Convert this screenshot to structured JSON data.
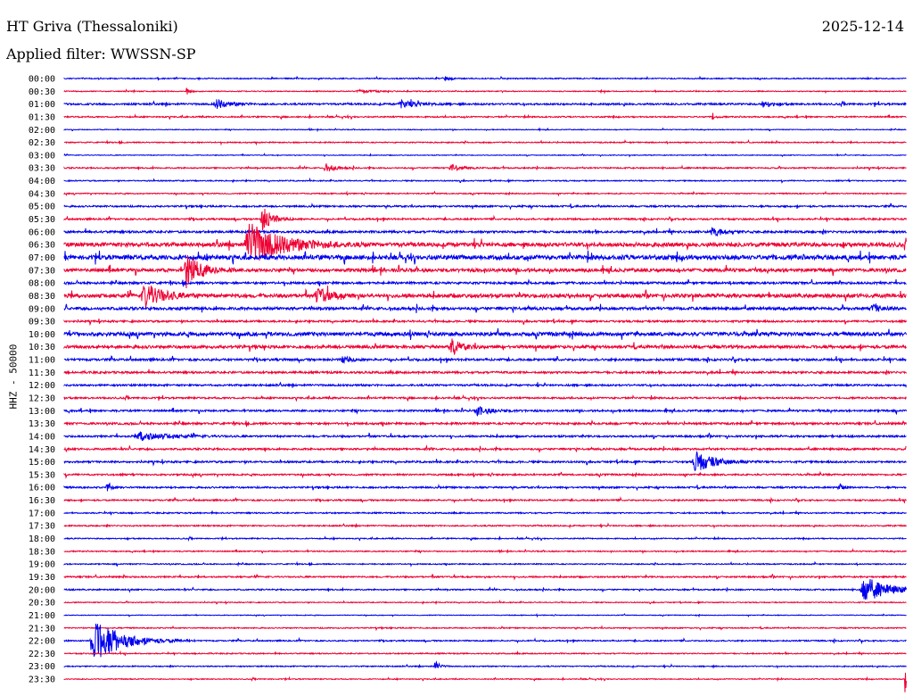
{
  "header": {
    "station": "HT Griva (Thessaloniki)",
    "date": "2025-12-14",
    "filter": "Applied filter: WWSSN-SP"
  },
  "chart_data": {
    "type": "line",
    "ylabel": "HHZ - 50000",
    "rows": [
      "00:00",
      "00:30",
      "01:00",
      "01:30",
      "02:00",
      "02:30",
      "03:00",
      "03:30",
      "04:00",
      "04:30",
      "05:00",
      "05:30",
      "06:00",
      "06:30",
      "07:00",
      "07:30",
      "08:00",
      "08:30",
      "09:00",
      "09:30",
      "10:00",
      "10:30",
      "11:00",
      "11:30",
      "12:00",
      "12:30",
      "13:00",
      "13:30",
      "14:00",
      "14:30",
      "15:00",
      "15:30",
      "16:00",
      "16:30",
      "17:00",
      "17:30",
      "18:00",
      "18:30",
      "19:00",
      "19:30",
      "20:00",
      "20:30",
      "21:00",
      "21:30",
      "22:00",
      "22:30",
      "23:00",
      "23:30"
    ],
    "colors": [
      "#0000ee",
      "#ee0033"
    ],
    "noise": [
      0.6,
      0.5,
      1.0,
      0.7,
      0.4,
      0.6,
      0.4,
      0.7,
      0.6,
      0.6,
      0.9,
      0.9,
      1.2,
      2.2,
      2.4,
      1.8,
      1.2,
      2.0,
      1.5,
      1.0,
      2.0,
      1.6,
      1.2,
      1.1,
      1.0,
      0.9,
      1.0,
      1.1,
      1.0,
      1.0,
      1.0,
      0.9,
      0.9,
      0.8,
      0.7,
      0.7,
      0.6,
      0.6,
      0.6,
      0.8,
      0.7,
      0.5,
      0.4,
      0.6,
      0.7,
      0.6,
      0.6,
      0.5
    ],
    "events": [
      {
        "row": 0,
        "pos": 0.45,
        "amp": 3,
        "dur": 0.006
      },
      {
        "row": 1,
        "pos": 0.145,
        "amp": 4,
        "dur": 0.004
      },
      {
        "row": 1,
        "pos": 0.35,
        "amp": 1.5,
        "dur": 0.02
      },
      {
        "row": 2,
        "pos": 0.18,
        "amp": 5,
        "dur": 0.015
      },
      {
        "row": 2,
        "pos": 0.4,
        "amp": 4,
        "dur": 0.02
      },
      {
        "row": 2,
        "pos": 0.83,
        "amp": 5,
        "dur": 0.008
      },
      {
        "row": 3,
        "pos": 0.77,
        "amp": 4,
        "dur": 0.004
      },
      {
        "row": 7,
        "pos": 0.31,
        "amp": 5,
        "dur": 0.01
      },
      {
        "row": 7,
        "pos": 0.46,
        "amp": 4,
        "dur": 0.01
      },
      {
        "row": 11,
        "pos": 0.235,
        "amp": 15,
        "dur": 0.01
      },
      {
        "row": 12,
        "pos": 0.77,
        "amp": 6,
        "dur": 0.012
      },
      {
        "row": 13,
        "pos": 0.22,
        "amp": 24,
        "dur": 0.035
      },
      {
        "row": 15,
        "pos": 0.145,
        "amp": 20,
        "dur": 0.015
      },
      {
        "row": 17,
        "pos": 0.095,
        "amp": 14,
        "dur": 0.02
      },
      {
        "row": 17,
        "pos": 0.3,
        "amp": 10,
        "dur": 0.015
      },
      {
        "row": 18,
        "pos": 0.96,
        "amp": 5,
        "dur": 0.01
      },
      {
        "row": 21,
        "pos": 0.46,
        "amp": 9,
        "dur": 0.01
      },
      {
        "row": 22,
        "pos": 0.33,
        "amp": 5,
        "dur": 0.008
      },
      {
        "row": 26,
        "pos": 0.49,
        "amp": 5,
        "dur": 0.015
      },
      {
        "row": 28,
        "pos": 0.09,
        "amp": 5,
        "dur": 0.03
      },
      {
        "row": 30,
        "pos": 0.75,
        "amp": 12,
        "dur": 0.02
      },
      {
        "row": 32,
        "pos": 0.05,
        "amp": 5,
        "dur": 0.005
      },
      {
        "row": 32,
        "pos": 0.92,
        "amp": 5,
        "dur": 0.005
      },
      {
        "row": 40,
        "pos": 0.95,
        "amp": 16,
        "dur": 0.025
      },
      {
        "row": 44,
        "pos": 0.035,
        "amp": 26,
        "dur": 0.03
      },
      {
        "row": 46,
        "pos": 0.44,
        "amp": 6,
        "dur": 0.005
      },
      {
        "row": 47,
        "pos": 0.999,
        "amp": 22,
        "dur": 0.002
      }
    ]
  }
}
